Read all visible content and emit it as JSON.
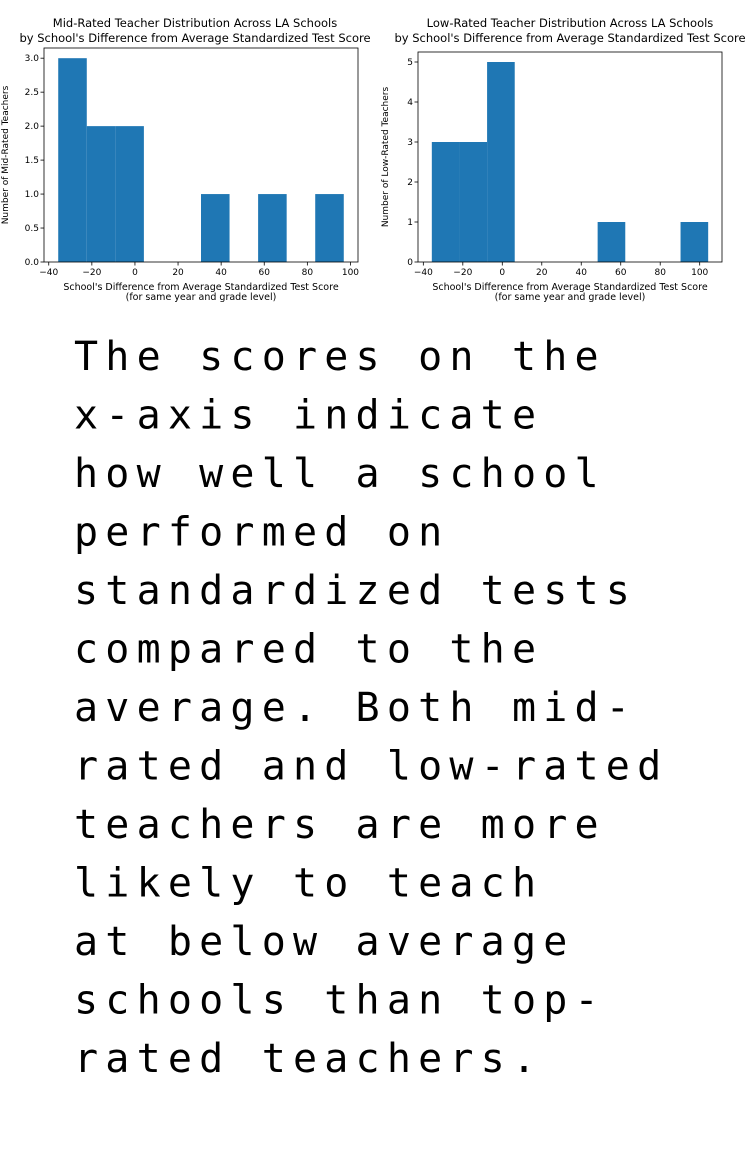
{
  "chart_data": [
    {
      "type": "histogram",
      "title": [
        "Mid-Rated Teacher Distribution Across LA Schools",
        "by School's Difference from Average Standardized Test Score"
      ],
      "xlabel": [
        "School's Difference from Average Standardized Test Score",
        "(for same year and grade level)"
      ],
      "ylabel": "Number of Mid-Rated Teachers",
      "bins": [
        -35.6,
        -22.35,
        -9.1,
        4.15,
        17.4,
        30.65,
        43.9,
        57.15,
        70.4,
        83.65,
        96.9
      ],
      "values": [
        3,
        2,
        2,
        0,
        0,
        1,
        0,
        1,
        0,
        1
      ],
      "color": "#1f77b4",
      "xlim": [
        -42.2,
        103.5
      ],
      "xticks": [
        {
          "value": -40,
          "label": "−40"
        },
        {
          "value": -20,
          "label": "−20"
        },
        0,
        20,
        40,
        60,
        80,
        100
      ],
      "ylim": [
        0,
        3.15
      ],
      "yticks": [
        {
          "value": 0,
          "label": "0.0"
        },
        0.5,
        {
          "value": 1,
          "label": "1.0"
        },
        1.5,
        {
          "value": 2,
          "label": "2.0"
        },
        2.5,
        {
          "value": 3,
          "label": "3.0"
        }
      ]
    },
    {
      "type": "histogram",
      "title": [
        "Low-Rated Teacher Distribution Across LA Schools",
        "by School's Difference from Average Standardized Test Score"
      ],
      "xlabel": [
        "School's Difference from Average Standardized Test Score",
        "(for same year and grade level)"
      ],
      "ylabel": "Number of Low-Rated Teachers",
      "bins": [
        -35.7,
        -21.7,
        -7.7,
        6.3,
        20.3,
        34.3,
        48.3,
        62.3,
        76.3,
        90.3,
        104.3
      ],
      "values": [
        3,
        3,
        5,
        0,
        0,
        0,
        1,
        0,
        0,
        1
      ],
      "color": "#1f77b4",
      "xlim": [
        -42.7,
        111.3
      ],
      "xticks": [
        {
          "value": -40,
          "label": "−40"
        },
        {
          "value": -20,
          "label": "−20"
        },
        0,
        20,
        40,
        60,
        80,
        100
      ],
      "ylim": [
        0,
        5.25
      ],
      "yticks": [
        0,
        1,
        2,
        3,
        4,
        5
      ]
    }
  ],
  "caption": [
    "The scores on the",
    "x-axis indicate",
    "how well a school",
    "performed on",
    "standardized tests",
    "compared to the",
    "average. Both mid-",
    "rated and low-rated",
    "teachers are more",
    "likely to teach",
    "at below average",
    "schools than top-",
    "rated teachers."
  ]
}
